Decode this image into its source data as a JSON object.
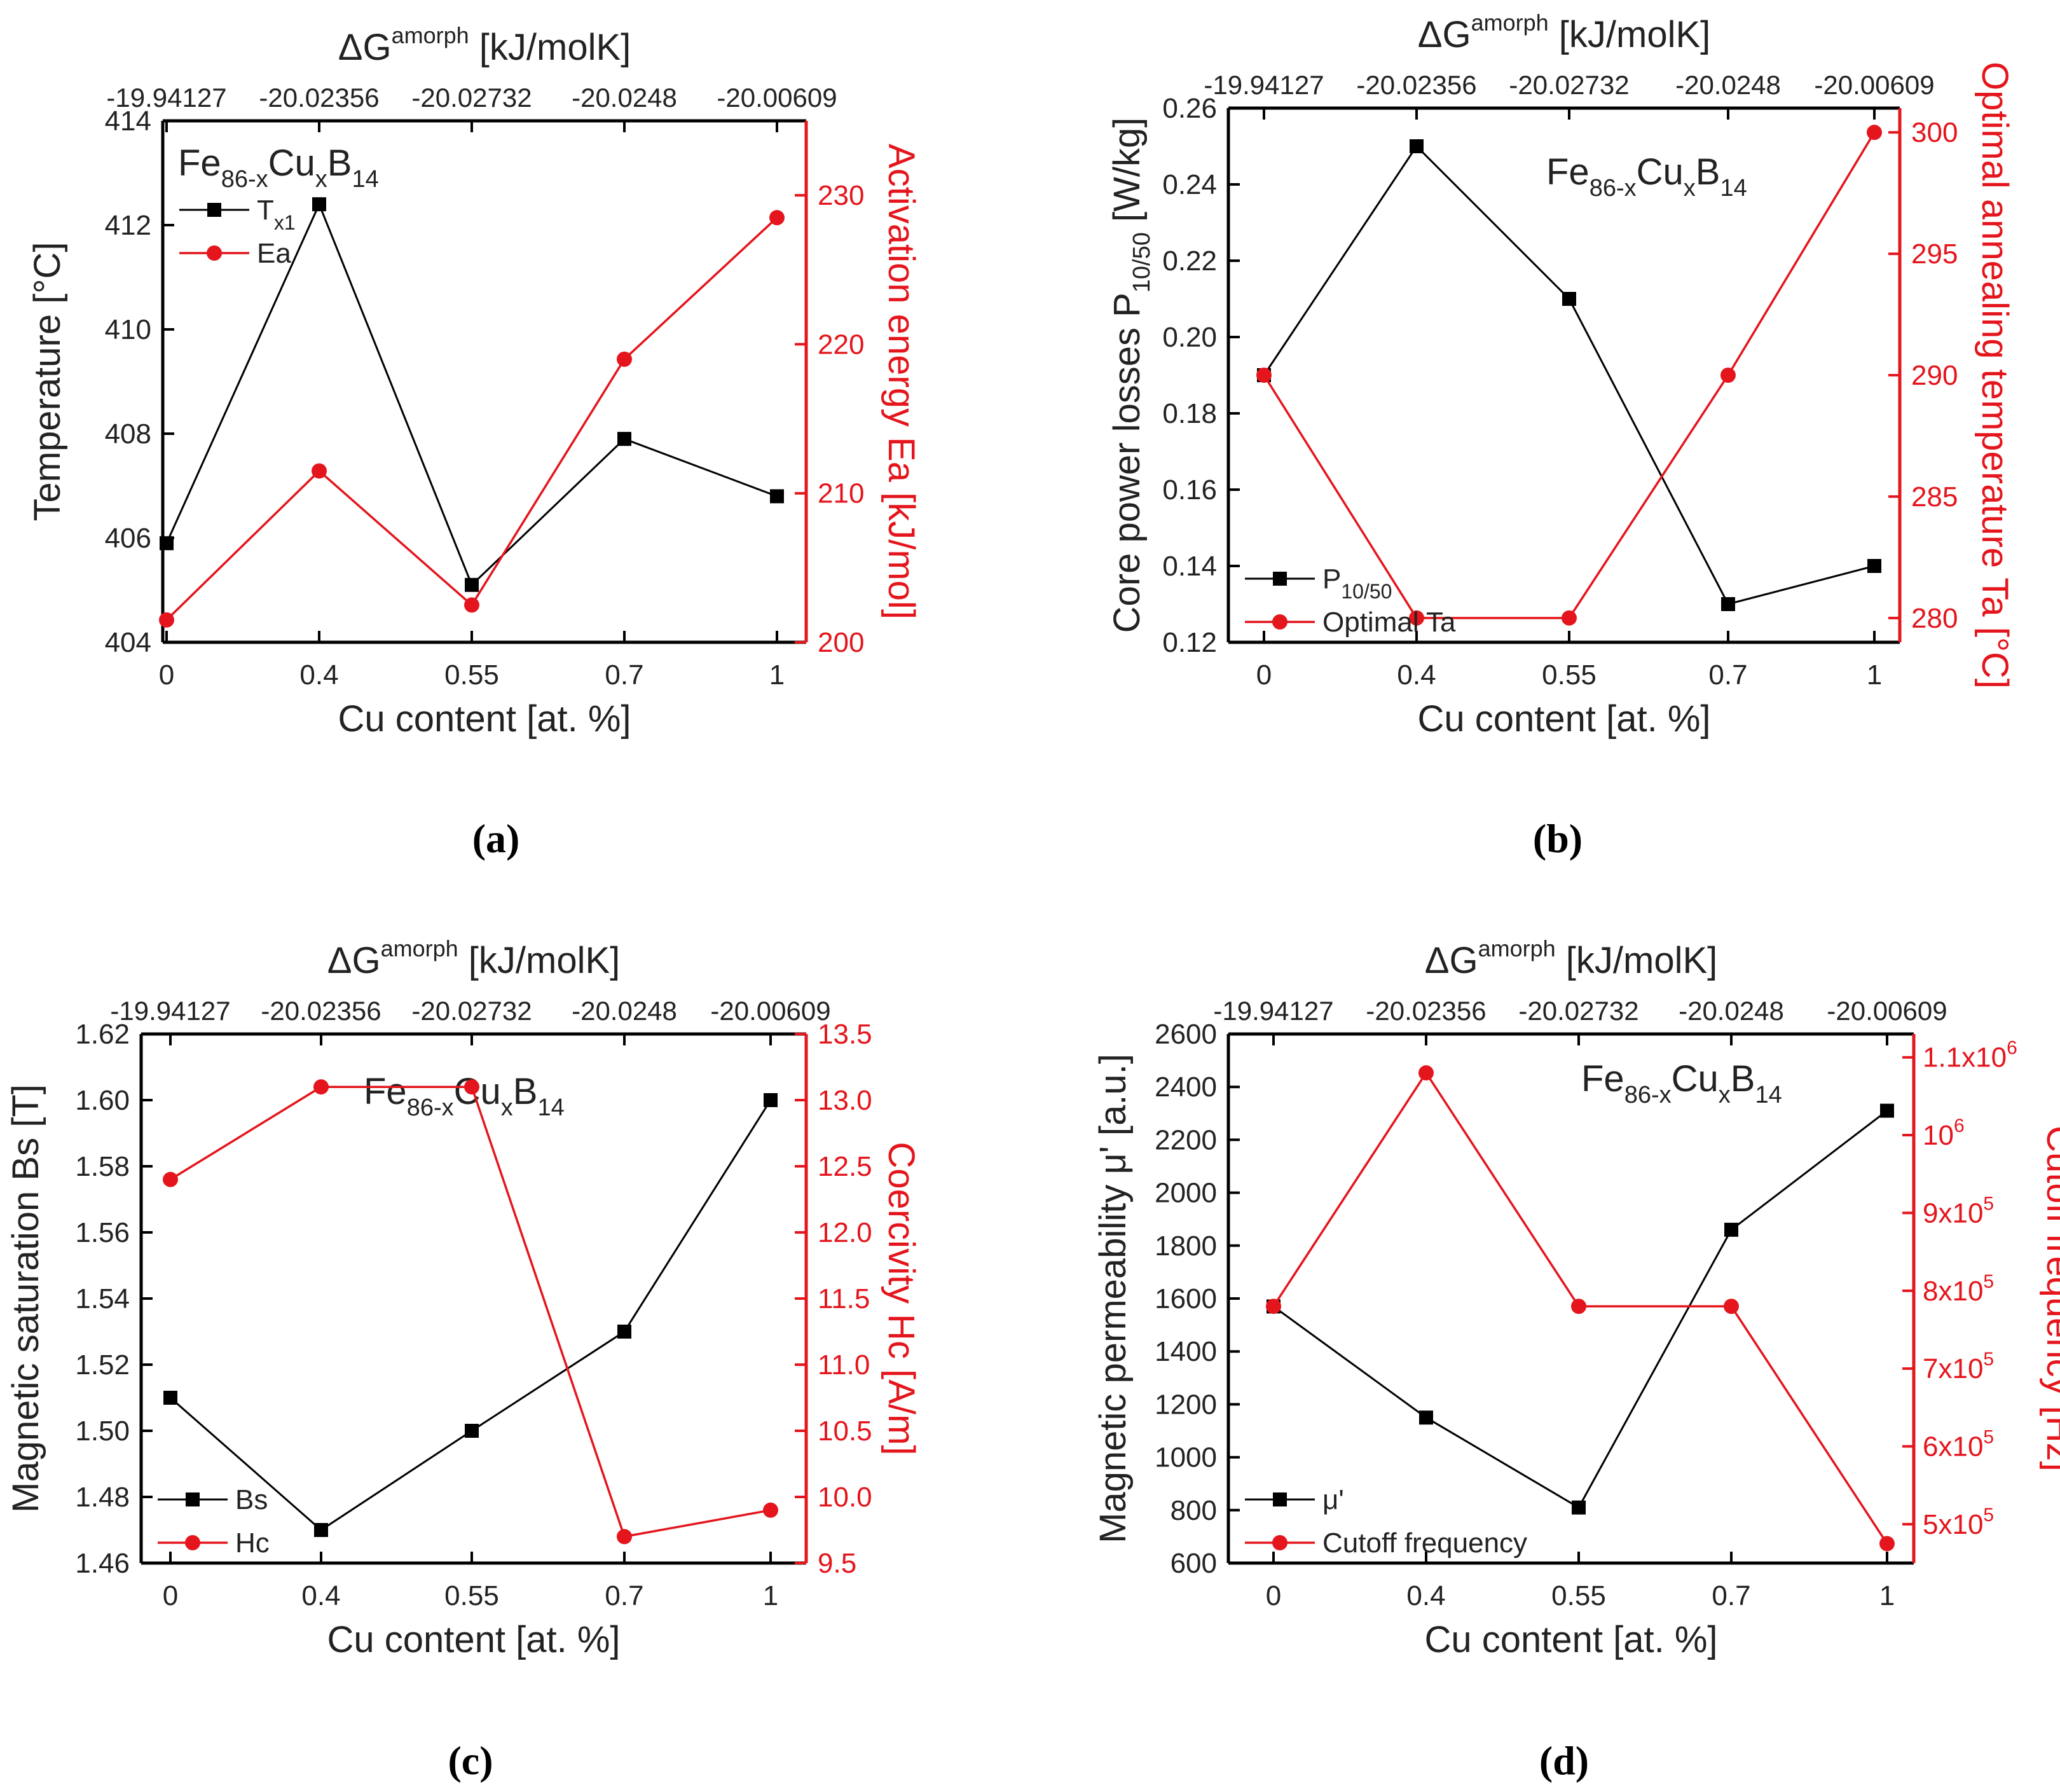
{
  "chart_data": [
    {
      "type": "line",
      "panel_label": "(a)",
      "categories": [
        "0",
        "0.4",
        "0.55",
        "0.7",
        "1"
      ],
      "top_categories": [
        "-19.94127",
        "-20.02356",
        "-20.02732",
        "-20.0248",
        "-20.00609"
      ],
      "top_title": "ΔG",
      "top_title_sup": "amorph",
      "top_title_rest": " [kJ/molK]",
      "xlabel": "Cu content [at. %]",
      "ylabel_left": "Temperature [°C]",
      "ylabel_right": "Activation energy Ea [kJ/mol]",
      "ylim_left": [
        404,
        414
      ],
      "yticks_left": [
        "404",
        "406",
        "408",
        "410",
        "412",
        "414"
      ],
      "ylim_right": [
        200,
        235
      ],
      "yticks_right": [
        "200",
        "210",
        "220",
        "230"
      ],
      "alloy": {
        "base": "Fe",
        "sub1": "86-x",
        "mid": "Cu",
        "sub2": "x",
        "end": "B",
        "sub3": "14"
      },
      "legend_position": "top-left",
      "series": [
        {
          "name": "T",
          "name_sub": "x1",
          "axis": "left",
          "color": "#000000",
          "marker": "square",
          "values": [
            405.9,
            412.4,
            405.1,
            407.9,
            406.8
          ]
        },
        {
          "name": "Ea",
          "name_sub": "",
          "axis": "right",
          "color": "#e4151c",
          "marker": "circle",
          "values": [
            201.5,
            211.5,
            202.5,
            219.0,
            228.5
          ]
        }
      ]
    },
    {
      "type": "line",
      "panel_label": "(b)",
      "categories": [
        "0",
        "0.4",
        "0.55",
        "0.7",
        "1"
      ],
      "top_categories": [
        "-19.94127",
        "-20.02356",
        "-20.02732",
        "-20.0248",
        "-20.00609"
      ],
      "top_title": "ΔG",
      "top_title_sup": "amorph",
      "top_title_rest": " [kJ/molK]",
      "xlabel": "Cu content [at. %]",
      "ylabel_left": "Core power losses P",
      "ylabel_left_sub": "10/50",
      "ylabel_left_rest": " [W/kg]",
      "ylabel_right": "Optimal annealing temperature Ta [°C]",
      "ylim_left": [
        0.12,
        0.26
      ],
      "yticks_left": [
        "0.12",
        "0.14",
        "0.16",
        "0.18",
        "0.20",
        "0.22",
        "0.24",
        "0.26"
      ],
      "ylim_right": [
        279,
        301
      ],
      "yticks_right": [
        "280",
        "285",
        "290",
        "295",
        "300"
      ],
      "alloy": {
        "base": "Fe",
        "sub1": "86-x",
        "mid": "Cu",
        "sub2": "x",
        "end": "B",
        "sub3": "14"
      },
      "legend_position": "bottom-left",
      "series": [
        {
          "name": "P",
          "name_sub": "10/50",
          "axis": "left",
          "color": "#000000",
          "marker": "square",
          "values": [
            0.19,
            0.25,
            0.21,
            0.13,
            0.14
          ]
        },
        {
          "name": "Optimal Ta",
          "name_sub": "",
          "axis": "right",
          "color": "#e4151c",
          "marker": "circle",
          "values": [
            290,
            280,
            280,
            290,
            300
          ]
        }
      ]
    },
    {
      "type": "line",
      "panel_label": "(c)",
      "categories": [
        "0",
        "0.4",
        "0.55",
        "0.7",
        "1"
      ],
      "top_categories": [
        "-19.94127",
        "-20.02356",
        "-20.02732",
        "-20.0248",
        "-20.00609"
      ],
      "top_title": "ΔG",
      "top_title_sup": "amorph",
      "top_title_rest": " [kJ/molK]",
      "xlabel": "Cu content [at. %]",
      "ylabel_left": "Magnetic saturation Bs [T]",
      "ylabel_right": "Coercivity Hc [A/m]",
      "ylim_left": [
        1.46,
        1.62
      ],
      "yticks_left": [
        "1.46",
        "1.48",
        "1.50",
        "1.52",
        "1.54",
        "1.56",
        "1.58",
        "1.60",
        "1.62"
      ],
      "ylim_right": [
        9.5,
        13.5
      ],
      "yticks_right": [
        "9.5",
        "10.0",
        "10.5",
        "11.0",
        "11.5",
        "12.0",
        "12.5",
        "13.0",
        "13.5"
      ],
      "alloy": {
        "base": "Fe",
        "sub1": "86-x",
        "mid": "Cu",
        "sub2": "x",
        "end": "B",
        "sub3": "14"
      },
      "legend_position": "bottom-left",
      "series": [
        {
          "name": "Bs",
          "name_sub": "",
          "axis": "left",
          "color": "#000000",
          "marker": "square",
          "values": [
            1.51,
            1.47,
            1.5,
            1.53,
            1.6
          ]
        },
        {
          "name": "Hc",
          "name_sub": "",
          "axis": "right",
          "color": "#e4151c",
          "marker": "circle",
          "values": [
            12.4,
            13.1,
            13.1,
            9.7,
            9.9
          ]
        }
      ]
    },
    {
      "type": "line",
      "panel_label": "(d)",
      "categories": [
        "0",
        "0.4",
        "0.55",
        "0.7",
        "1"
      ],
      "top_categories": [
        "-19.94127",
        "-20.02356",
        "-20.02732",
        "-20.0248",
        "-20.00609"
      ],
      "top_title": "ΔG",
      "top_title_sup": "amorph",
      "top_title_rest": " [kJ/molK]",
      "xlabel": "Cu content [at. %]",
      "ylabel_left": "Magnetic permeability μ' [a.u.]",
      "ylabel_right": "Cutoff frequency [Hz]",
      "ylim_left": [
        600,
        2600
      ],
      "yticks_left": [
        "600",
        "800",
        "1000",
        "1200",
        "1400",
        "1600",
        "1800",
        "2000",
        "2200",
        "2400",
        "2600"
      ],
      "ylim_right": [
        450000,
        1130000
      ],
      "yticks_right": [
        {
          "mant": "5x10",
          "exp": "5",
          "value": 500000
        },
        {
          "mant": "6x10",
          "exp": "5",
          "value": 600000
        },
        {
          "mant": "7x10",
          "exp": "5",
          "value": 700000
        },
        {
          "mant": "8x10",
          "exp": "5",
          "value": 800000
        },
        {
          "mant": "9x10",
          "exp": "5",
          "value": 900000
        },
        {
          "mant": "10",
          "exp": "6",
          "value": 1000000
        },
        {
          "mant": "1.1x10",
          "exp": "6",
          "value": 1100000
        }
      ],
      "alloy": {
        "base": "Fe",
        "sub1": "86-x",
        "mid": "Cu",
        "sub2": "x",
        "end": "B",
        "sub3": "14"
      },
      "legend_position": "bottom-left",
      "series": [
        {
          "name": "μ'",
          "name_sub": "",
          "axis": "left",
          "color": "#000000",
          "marker": "square",
          "values": [
            1570,
            1150,
            810,
            1860,
            2310
          ]
        },
        {
          "name": "Cutoff frequency",
          "name_sub": "",
          "axis": "right",
          "color": "#e4151c",
          "marker": "circle",
          "values": [
            780000,
            1080000,
            780000,
            780000,
            475000
          ]
        }
      ]
    }
  ]
}
